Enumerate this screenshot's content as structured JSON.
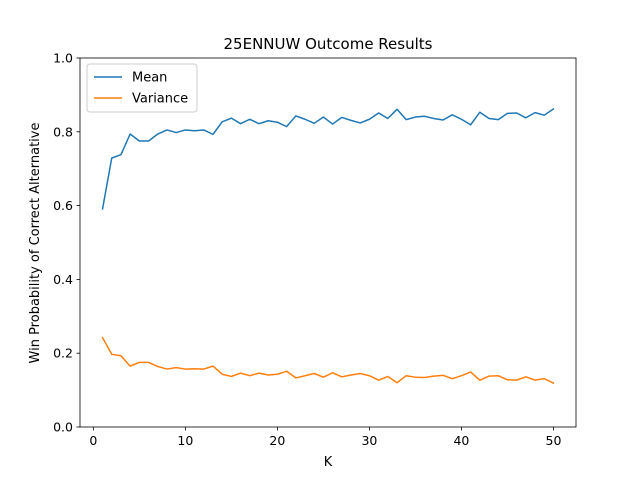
{
  "chart_data": {
    "type": "line",
    "title": "25ENNUW Outcome Results",
    "xlabel": "K",
    "ylabel": "Win Probability of Correct Alternative",
    "xlim": [
      -1.45,
      52.45
    ],
    "ylim": [
      0.0,
      1.0
    ],
    "xticks": [
      0,
      10,
      20,
      30,
      40,
      50
    ],
    "yticks": [
      0.0,
      0.2,
      0.4,
      0.6,
      0.8,
      1.0
    ],
    "xtick_labels": [
      "0",
      "10",
      "20",
      "30",
      "40",
      "50"
    ],
    "ytick_labels": [
      "0.0",
      "0.2",
      "0.4",
      "0.6",
      "0.8",
      "1.0"
    ],
    "grid": false,
    "legend_position": "top-left",
    "x": [
      1,
      2,
      3,
      4,
      5,
      6,
      7,
      8,
      9,
      10,
      11,
      12,
      13,
      14,
      15,
      16,
      17,
      18,
      19,
      20,
      21,
      22,
      23,
      24,
      25,
      26,
      27,
      28,
      29,
      30,
      31,
      32,
      33,
      34,
      35,
      36,
      37,
      38,
      39,
      40,
      41,
      42,
      43,
      44,
      45,
      46,
      47,
      48,
      49,
      50
    ],
    "series": [
      {
        "name": "Mean",
        "color": "#1f77b4",
        "values": [
          0.591,
          0.729,
          0.738,
          0.794,
          0.775,
          0.775,
          0.794,
          0.805,
          0.798,
          0.805,
          0.803,
          0.805,
          0.793,
          0.827,
          0.837,
          0.822,
          0.834,
          0.822,
          0.83,
          0.826,
          0.814,
          0.843,
          0.834,
          0.823,
          0.84,
          0.821,
          0.839,
          0.831,
          0.824,
          0.834,
          0.851,
          0.836,
          0.861,
          0.833,
          0.84,
          0.842,
          0.836,
          0.832,
          0.846,
          0.834,
          0.819,
          0.853,
          0.836,
          0.833,
          0.85,
          0.851,
          0.838,
          0.852,
          0.845,
          0.862
        ]
      },
      {
        "name": "Variance",
        "color": "#ff7f0e",
        "values": [
          0.242,
          0.197,
          0.193,
          0.165,
          0.175,
          0.175,
          0.164,
          0.157,
          0.161,
          0.157,
          0.158,
          0.157,
          0.165,
          0.143,
          0.137,
          0.146,
          0.139,
          0.146,
          0.141,
          0.143,
          0.151,
          0.133,
          0.139,
          0.145,
          0.135,
          0.147,
          0.136,
          0.141,
          0.145,
          0.139,
          0.127,
          0.137,
          0.12,
          0.139,
          0.135,
          0.134,
          0.138,
          0.14,
          0.131,
          0.139,
          0.149,
          0.127,
          0.138,
          0.139,
          0.128,
          0.127,
          0.136,
          0.127,
          0.131,
          0.119
        ]
      }
    ]
  }
}
